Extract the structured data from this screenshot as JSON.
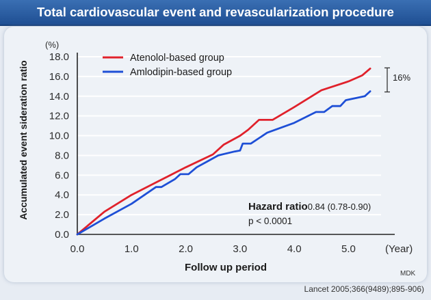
{
  "title": "Total cardiovascular event and revascularization procedure",
  "footer": "Lancet 2005;366(9489);895-906)",
  "brand": "MDK",
  "annotations": {
    "hazard_label": "Hazard ratio",
    "hazard_value": "0.84 (0.78-0.90)",
    "p_value": "p < 0.0001",
    "gap_label": "16%"
  },
  "chart_data": {
    "type": "line",
    "title": "Total cardiovascular event and revascularization procedure",
    "xlabel": "Follow up period",
    "x_unit": "(Year)",
    "ylabel": "Accumulated event sideration ratio",
    "y_unit": "(%)",
    "xlim": [
      0,
      5.6
    ],
    "ylim": [
      0,
      18
    ],
    "x_ticks": [
      "0.0",
      "1.0",
      "2.0",
      "3.0",
      "4.0",
      "5.0"
    ],
    "y_ticks": [
      "0.0",
      "2.0",
      "4.0",
      "6.0",
      "8.0",
      "10.0",
      "12.0",
      "14.0",
      "16.0",
      "18.0"
    ],
    "legend_position": "top-left",
    "series": [
      {
        "name": "Atenolol-based group",
        "color": "#e0212b",
        "points": [
          [
            0,
            0
          ],
          [
            0.5,
            2.3
          ],
          [
            1.0,
            4.0
          ],
          [
            1.5,
            5.4
          ],
          [
            2.0,
            6.8
          ],
          [
            2.5,
            8.1
          ],
          [
            2.7,
            9.1
          ],
          [
            3.0,
            10.0
          ],
          [
            3.15,
            10.6
          ],
          [
            3.35,
            11.6
          ],
          [
            3.6,
            11.6
          ],
          [
            4.0,
            12.9
          ],
          [
            4.5,
            14.6
          ],
          [
            5.0,
            15.5
          ],
          [
            5.25,
            16.1
          ],
          [
            5.4,
            16.8
          ]
        ]
      },
      {
        "name": "Amlodipin-based group",
        "color": "#1e4fd6",
        "points": [
          [
            0,
            0
          ],
          [
            0.5,
            1.6
          ],
          [
            1.0,
            3.1
          ],
          [
            1.45,
            4.8
          ],
          [
            1.55,
            4.8
          ],
          [
            1.8,
            5.6
          ],
          [
            1.9,
            6.1
          ],
          [
            2.05,
            6.1
          ],
          [
            2.2,
            6.8
          ],
          [
            2.4,
            7.4
          ],
          [
            2.6,
            8.0
          ],
          [
            2.9,
            8.4
          ],
          [
            3.0,
            8.5
          ],
          [
            3.05,
            9.2
          ],
          [
            3.2,
            9.2
          ],
          [
            3.5,
            10.3
          ],
          [
            4.0,
            11.3
          ],
          [
            4.4,
            12.4
          ],
          [
            4.55,
            12.4
          ],
          [
            4.7,
            13.0
          ],
          [
            4.85,
            13.0
          ],
          [
            4.95,
            13.6
          ],
          [
            5.3,
            14.0
          ],
          [
            5.4,
            14.5
          ]
        ]
      }
    ]
  }
}
